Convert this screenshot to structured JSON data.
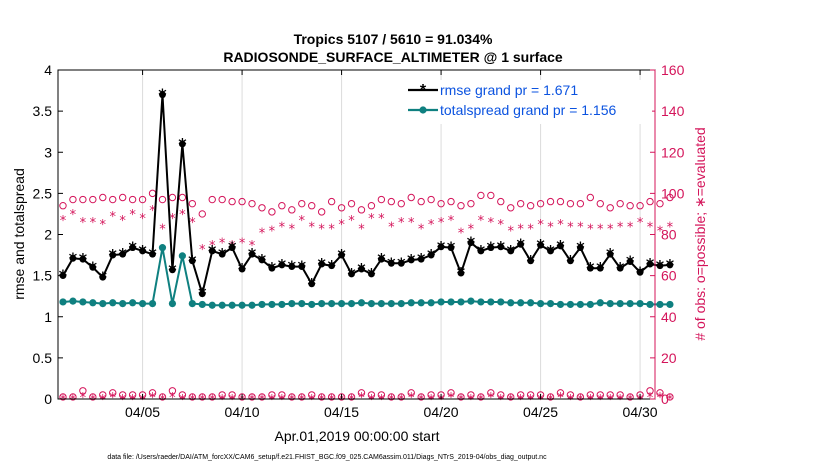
{
  "chart_data": {
    "type": "line",
    "title_line1": "Tropics 5107 / 5610 = 91.034%",
    "title_line2": "RADIOSONDE_SURFACE_ALTIMETER @ 1 surface",
    "xlabel": "Apr.01,2019 00:00:00 start",
    "ylabel_left": "rmse and totalspread",
    "ylabel_right": "# of obs: o=possible; ∗=evaluated",
    "footer": "data file: /Users/raeder/DAI/ATM_forcXX/CAM6_setup/f.e21.FHIST_BGC.f09_025.CAM6assim.011/Diags_NTrS_2019-04/obs_diag_output.nc",
    "x_range": [
      0.75,
      30.75
    ],
    "ylim_left": [
      0,
      4
    ],
    "ylim_right": [
      0,
      160
    ],
    "x_ticks": [
      {
        "x": 5,
        "label": "04/05"
      },
      {
        "x": 10,
        "label": "04/10"
      },
      {
        "x": 15,
        "label": "04/15"
      },
      {
        "x": 20,
        "label": "04/20"
      },
      {
        "x": 25,
        "label": "04/25"
      },
      {
        "x": 30,
        "label": "04/30"
      }
    ],
    "y_ticks_left": [
      "0",
      "0.5",
      "1",
      "1.5",
      "2",
      "2.5",
      "3",
      "3.5",
      "4"
    ],
    "y_ticks_right": [
      "0",
      "20",
      "40",
      "60",
      "80",
      "100",
      "120",
      "140",
      "160"
    ],
    "grid": true,
    "legend_position": "top-right",
    "series": [
      {
        "name": "rmse grand pr = 1.671",
        "color": "#000000",
        "values": [
          1.5,
          1.71,
          1.7,
          1.6,
          1.48,
          1.75,
          1.76,
          1.84,
          1.8,
          1.76,
          3.7,
          1.57,
          3.1,
          1.68,
          1.28,
          1.8,
          1.76,
          1.84,
          1.58,
          1.76,
          1.69,
          1.59,
          1.63,
          1.61,
          1.61,
          1.4,
          1.64,
          1.62,
          1.75,
          1.52,
          1.58,
          1.52,
          1.7,
          1.65,
          1.65,
          1.69,
          1.7,
          1.75,
          1.85,
          1.84,
          1.53,
          1.9,
          1.8,
          1.84,
          1.85,
          1.8,
          1.88,
          1.68,
          1.87,
          1.8,
          1.86,
          1.68,
          1.84,
          1.59,
          1.59,
          1.76,
          1.59,
          1.67,
          1.54,
          1.64,
          1.62,
          1.63
        ]
      },
      {
        "name": "totalspread grand pr = 1.156",
        "color": "#0f8080",
        "values": [
          1.18,
          1.19,
          1.18,
          1.17,
          1.16,
          1.17,
          1.16,
          1.17,
          1.16,
          1.16,
          1.84,
          1.16,
          1.74,
          1.16,
          1.15,
          1.14,
          1.14,
          1.14,
          1.14,
          1.14,
          1.15,
          1.15,
          1.15,
          1.16,
          1.16,
          1.15,
          1.16,
          1.16,
          1.16,
          1.16,
          1.17,
          1.16,
          1.16,
          1.16,
          1.16,
          1.17,
          1.17,
          1.17,
          1.18,
          1.18,
          1.18,
          1.19,
          1.18,
          1.18,
          1.18,
          1.17,
          1.17,
          1.17,
          1.16,
          1.16,
          1.15,
          1.15,
          1.15,
          1.15,
          1.17,
          1.16,
          1.16,
          1.16,
          1.16,
          1.15,
          1.15,
          1.15
        ]
      },
      {
        "name": "possible",
        "color": "#d4145a",
        "axis": "right",
        "values": [
          94,
          97,
          97,
          97,
          98,
          97,
          98,
          97,
          97,
          100,
          97,
          98,
          98,
          95,
          90,
          97,
          97,
          96,
          96,
          95,
          93,
          91,
          94,
          92,
          95,
          94,
          91,
          96,
          93,
          95,
          92,
          94,
          97,
          96,
          95,
          98,
          96,
          97,
          95,
          96,
          94,
          95,
          99,
          99,
          96,
          93,
          95,
          94,
          95,
          96,
          96,
          95,
          95,
          98,
          95,
          93,
          95,
          94,
          94,
          96,
          95,
          98
        ],
        "values_low": [
          1,
          1,
          4,
          1,
          2,
          3,
          2,
          2,
          2,
          3,
          1,
          4,
          2,
          1,
          1,
          1,
          2,
          2,
          1,
          1,
          1,
          2,
          2,
          1,
          1,
          2,
          1,
          1,
          1,
          1,
          3,
          2,
          2,
          1,
          1,
          3,
          1,
          2,
          2,
          3,
          1,
          2,
          1,
          3,
          2,
          1,
          2,
          2,
          2,
          1,
          3,
          2,
          1,
          2,
          2,
          2,
          2,
          1,
          2,
          4,
          3,
          1
        ]
      },
      {
        "name": "evaluated",
        "color": "#d4145a",
        "axis": "right",
        "values": [
          87,
          90,
          86,
          86,
          85,
          89,
          87,
          90,
          88,
          92,
          83,
          88,
          90,
          86,
          73,
          75,
          76,
          75,
          76,
          75,
          81,
          82,
          84,
          83,
          87,
          84,
          83,
          83,
          85,
          87,
          83,
          88,
          88,
          84,
          86,
          86,
          83,
          85,
          86,
          87,
          81,
          83,
          87,
          86,
          85,
          82,
          83,
          83,
          85,
          84,
          85,
          84,
          84,
          83,
          83,
          83,
          84,
          84,
          86,
          84,
          82,
          84
        ],
        "values_low": [
          0,
          0,
          1,
          0,
          0,
          1,
          0,
          0,
          0,
          1,
          0,
          1,
          0,
          0,
          0,
          0,
          0,
          0,
          0,
          0,
          0,
          0,
          0,
          0,
          0,
          0,
          0,
          0,
          0,
          0,
          1,
          0,
          0,
          0,
          0,
          1,
          0,
          0,
          0,
          1,
          0,
          0,
          0,
          1,
          0,
          0,
          0,
          0,
          0,
          0,
          1,
          0,
          0,
          0,
          0,
          0,
          0,
          0,
          0,
          1,
          1,
          0
        ]
      }
    ]
  }
}
